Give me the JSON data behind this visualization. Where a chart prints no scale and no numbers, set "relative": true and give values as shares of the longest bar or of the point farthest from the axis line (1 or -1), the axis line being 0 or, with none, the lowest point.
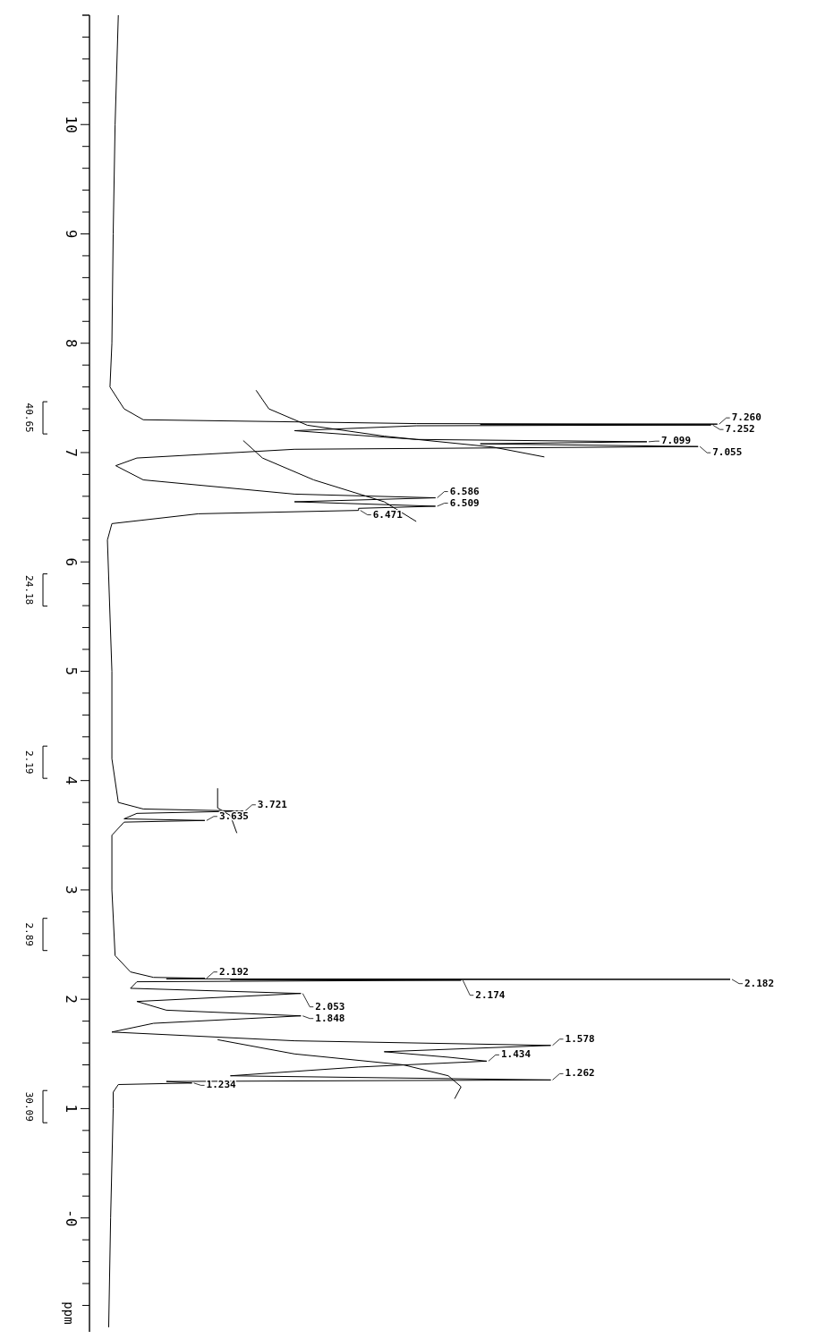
{
  "chart_data": {
    "type": "line",
    "orientation": "horizontal",
    "relative": true,
    "ylabel": "ppm",
    "ylim": [
      -1.05,
      11
    ],
    "yticks": [
      {
        "value": 10.8,
        "label": null
      },
      {
        "value": 10.6,
        "label": null
      },
      {
        "value": 10.4,
        "label": null
      },
      {
        "value": 10.2,
        "label": null
      },
      10,
      {
        "value": 9.8,
        "label": null
      },
      {
        "value": 9.6,
        "label": null
      },
      {
        "value": 9.4,
        "label": null
      },
      {
        "value": 9.2,
        "label": null
      },
      9,
      {
        "value": 8.8,
        "label": null
      },
      {
        "value": 8.6,
        "label": null
      },
      {
        "value": 8.4,
        "label": null
      },
      {
        "value": 8.2,
        "label": null
      },
      8,
      {
        "value": 7.8,
        "label": null
      },
      {
        "value": 7.6,
        "label": null
      },
      {
        "value": 7.4,
        "label": null
      },
      {
        "value": 7.2,
        "label": null
      },
      7,
      {
        "value": 6.8,
        "label": null
      },
      {
        "value": 6.6,
        "label": null
      },
      {
        "value": 6.4,
        "label": null
      },
      {
        "value": 6.2,
        "label": null
      },
      6,
      {
        "value": 5.8,
        "label": null
      },
      {
        "value": 5.6,
        "label": null
      },
      {
        "value": 5.4,
        "label": null
      },
      {
        "value": 5.2,
        "label": null
      },
      5,
      {
        "value": 4.8,
        "label": null
      },
      {
        "value": 4.6,
        "label": null
      },
      {
        "value": 4.4,
        "label": null
      },
      {
        "value": 4.2,
        "label": null
      },
      4,
      {
        "value": 3.8,
        "label": null
      },
      {
        "value": 3.6,
        "label": null
      },
      {
        "value": 3.4,
        "label": null
      },
      {
        "value": 3.2,
        "label": null
      },
      3,
      {
        "value": 2.8,
        "label": null
      },
      {
        "value": 2.6,
        "label": null
      },
      {
        "value": 2.4,
        "label": null
      },
      {
        "value": 2.2,
        "label": null
      },
      2,
      {
        "value": 1.8,
        "label": null
      },
      {
        "value": 1.6,
        "label": null
      },
      {
        "value": 1.4,
        "label": null
      },
      {
        "value": 1.2,
        "label": null
      },
      1,
      {
        "value": 0.8,
        "label": null
      },
      {
        "value": 0.6,
        "label": null
      },
      {
        "value": 0.4,
        "label": null
      },
      {
        "value": 0.2,
        "label": null
      },
      {
        "value": 0,
        "label": "-0"
      },
      {
        "value": -0.2,
        "label": null
      },
      {
        "value": -0.4,
        "label": null
      },
      {
        "value": -0.6,
        "label": null
      },
      {
        "value": -0.8,
        "label": null
      }
    ],
    "series": [
      {
        "color": "#000000",
        "x": [
          11,
          10,
          9,
          8,
          7.6,
          7.4,
          7.3,
          7.265,
          7.26,
          7.256,
          7.252,
          7.245,
          7.2,
          7.12,
          7.099,
          7.08,
          7.055,
          7.03,
          6.95,
          6.88,
          6.75,
          6.62,
          6.586,
          6.55,
          6.509,
          6.49,
          6.471,
          6.44,
          6.35,
          6.2,
          5,
          4.2,
          3.8,
          3.74,
          3.721,
          3.7,
          3.65,
          3.635,
          3.62,
          3.5,
          3,
          2.4,
          2.25,
          2.2,
          2.192,
          2.187,
          2.182,
          2.178,
          2.174,
          2.16,
          2.1,
          2.053,
          1.98,
          1.9,
          1.848,
          1.78,
          1.7,
          1.62,
          1.578,
          1.52,
          1.47,
          1.434,
          1.38,
          1.3,
          1.262,
          1.248,
          1.234,
          1.22,
          1.15,
          1,
          0,
          -1
        ],
        "values": [
          0.045,
          0.04,
          0.037,
          0.035,
          0.032,
          0.054,
          0.084,
          0.51,
          0.98,
          0.61,
          0.97,
          0.51,
          0.32,
          0.51,
          0.87,
          0.61,
          0.95,
          0.32,
          0.074,
          0.041,
          0.084,
          0.32,
          0.54,
          0.32,
          0.54,
          0.42,
          0.42,
          0.17,
          0.035,
          0.028,
          0.035,
          0.035,
          0.045,
          0.084,
          0.24,
          0.074,
          0.054,
          0.18,
          0.054,
          0.035,
          0.035,
          0.04,
          0.064,
          0.1,
          0.18,
          0.12,
          1,
          0.22,
          0.58,
          0.074,
          0.064,
          0.33,
          0.074,
          0.12,
          0.33,
          0.1,
          0.035,
          0.32,
          0.72,
          0.46,
          0.56,
          0.62,
          0.42,
          0.22,
          0.72,
          0.12,
          0.16,
          0.045,
          0.037,
          0.037,
          0.033,
          0.03
        ]
      },
      {
        "color": "#000000",
        "x": [
          7.57,
          7.4,
          7.25,
          7.15,
          7.05,
          6.96
        ],
        "values": [
          0.26,
          0.28,
          0.34,
          0.46,
          0.63,
          0.71
        ]
      },
      {
        "color": "#000000",
        "x": [
          7.11,
          6.95,
          6.75,
          6.55,
          6.37
        ],
        "values": [
          0.24,
          0.27,
          0.35,
          0.46,
          0.51
        ]
      },
      {
        "color": "#000000",
        "x": [
          3.93,
          3.75,
          3.68,
          3.52
        ],
        "values": [
          0.2,
          0.2,
          0.22,
          0.23
        ]
      },
      {
        "color": "#000000",
        "x": [
          1.63,
          1.5,
          1.4,
          1.3,
          1.2,
          1.09
        ],
        "values": [
          0.2,
          0.32,
          0.49,
          0.56,
          0.58,
          0.57
        ]
      }
    ],
    "annotations": [
      "40.65",
      "24.18",
      "2.19",
      "2.89",
      "30.09",
      {
        "text": "7.260",
        "y": 7.26,
        "x": 0.98
      },
      {
        "text": "7.252",
        "y": 7.252,
        "x": 0.97
      },
      {
        "text": "7.099",
        "y": 7.099,
        "x": 0.87
      },
      {
        "text": "7.055",
        "y": 7.055,
        "x": 0.95
      },
      {
        "text": "6.586",
        "y": 6.586,
        "x": 0.54
      },
      {
        "text": "6.509",
        "y": 6.509,
        "x": 0.54
      },
      {
        "text": "6.471",
        "y": 6.471,
        "x": 0.42
      },
      {
        "text": "3.721",
        "y": 3.721,
        "x": 0.24
      },
      {
        "text": "3.635",
        "y": 3.635,
        "x": 0.18
      },
      {
        "text": "2.192",
        "y": 2.192,
        "x": 0.18
      },
      {
        "text": "2.182",
        "y": 2.182,
        "x": 1
      },
      {
        "text": "2.174",
        "y": 2.174,
        "x": 0.58
      },
      {
        "text": "2.053",
        "y": 2.053,
        "x": 0.33
      },
      {
        "text": "1.848",
        "y": 1.848,
        "x": 0.33
      },
      {
        "text": "1.578",
        "y": 1.578,
        "x": 0.72
      },
      {
        "text": "1.434",
        "y": 1.434,
        "x": 0.62
      },
      {
        "text": "1.262",
        "y": 1.262,
        "x": 0.72
      },
      {
        "text": "1.234",
        "y": 1.234,
        "x": 0.16
      }
    ]
  }
}
